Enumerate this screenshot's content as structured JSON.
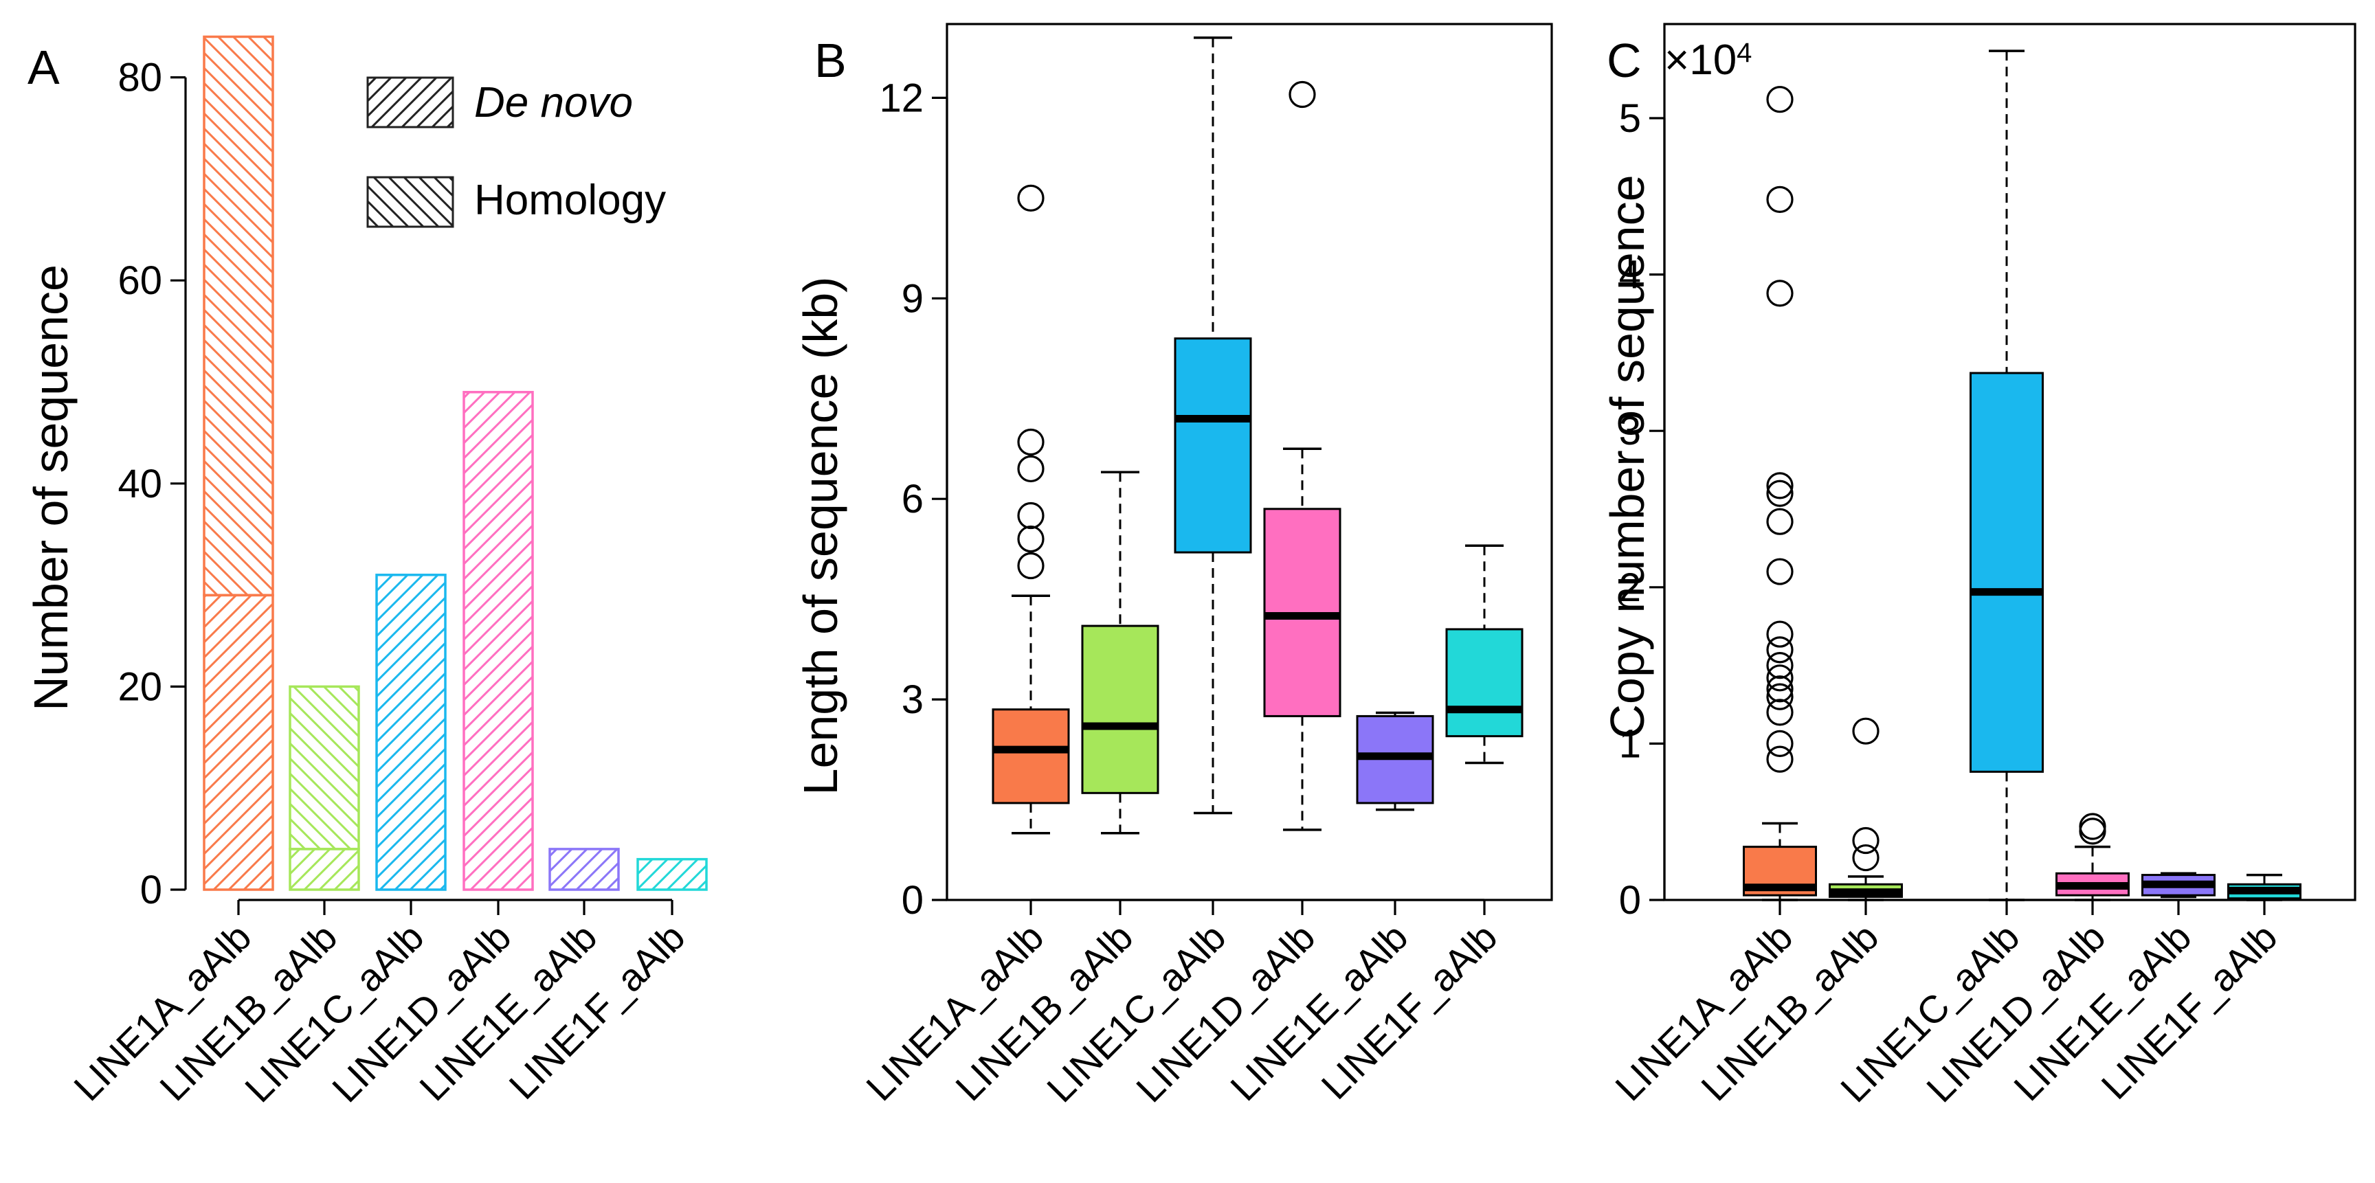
{
  "colors": {
    "LINE1A_aAlb": "#f97a4a",
    "LINE1B_aAlb": "#a6e75a",
    "LINE1C_aAlb": "#1ab8ee",
    "LINE1D_aAlb": "#ff6fc0",
    "LINE1E_aAlb": "#8b76f8",
    "LINE1F_aAlb": "#22d8d8",
    "outlier": "#000000"
  },
  "chart_data": [
    {
      "panel": "A",
      "type": "bar",
      "title": "",
      "xlabel": "",
      "ylabel": "Number of sequence",
      "ylim": [
        0,
        85
      ],
      "yticks": [
        0,
        20,
        40,
        60,
        80
      ],
      "categories": [
        "LINE1A_aAlb",
        "LINE1B_aAlb",
        "LINE1C_aAlb",
        "LINE1D_aAlb",
        "LINE1E_aAlb",
        "LINE1F_aAlb"
      ],
      "series": [
        {
          "name": "De novo",
          "pattern": "hatch-forward",
          "values": [
            29,
            4,
            31,
            49,
            4,
            3
          ]
        },
        {
          "name": "Homology",
          "pattern": "hatch-backward",
          "values": [
            55,
            16,
            0,
            0,
            0,
            0
          ]
        }
      ],
      "legend": {
        "position": "top-right",
        "entries": [
          {
            "label": "De novo",
            "italic": true
          },
          {
            "label": "Homology",
            "italic": false
          }
        ]
      }
    },
    {
      "panel": "B",
      "type": "box",
      "title": "",
      "xlabel": "",
      "ylabel": "Length of sequence (kb)",
      "ylim": [
        0,
        13
      ],
      "yticks": [
        0,
        3,
        6,
        9,
        12
      ],
      "categories": [
        "LINE1A_aAlb",
        "LINE1B_aAlb",
        "LINE1C_aAlb",
        "LINE1D_aAlb",
        "LINE1E_aAlb",
        "LINE1F_aAlb"
      ],
      "boxes": [
        {
          "whisker_low": 1.0,
          "q1": 1.45,
          "median": 2.25,
          "q3": 2.85,
          "whisker_high": 4.55,
          "outliers": [
            5.0,
            5.4,
            5.75,
            6.45,
            6.85,
            10.5
          ]
        },
        {
          "whisker_low": 1.0,
          "q1": 1.6,
          "median": 2.6,
          "q3": 4.1,
          "whisker_high": 6.4,
          "outliers": []
        },
        {
          "whisker_low": 1.3,
          "q1": 5.2,
          "median": 7.2,
          "q3": 8.4,
          "whisker_high": 12.9,
          "outliers": []
        },
        {
          "whisker_low": 1.05,
          "q1": 2.75,
          "median": 4.25,
          "q3": 5.85,
          "whisker_high": 6.75,
          "outliers": [
            12.05
          ]
        },
        {
          "whisker_low": 1.35,
          "q1": 1.45,
          "median": 2.15,
          "q3": 2.75,
          "whisker_high": 2.8,
          "outliers": []
        },
        {
          "whisker_low": 2.05,
          "q1": 2.45,
          "median": 2.85,
          "q3": 4.05,
          "whisker_high": 5.3,
          "outliers": []
        }
      ]
    },
    {
      "panel": "C",
      "type": "box",
      "title": "",
      "xlabel": "",
      "ylabel": "Copy number of sequence",
      "scale_label": "×10",
      "scale_exponent": "4",
      "ylim": [
        0,
        5.55
      ],
      "yticks": [
        0,
        1,
        2,
        3,
        4,
        5
      ],
      "categories": [
        "LINE1A_aAlb",
        "LINE1B_aAlb",
        "LINE1C_aAlb",
        "LINE1D_aAlb",
        "LINE1E_aAlb",
        "LINE1F_aAlb"
      ],
      "boxes": [
        {
          "whisker_low": 0.0,
          "q1": 0.03,
          "median": 0.08,
          "q3": 0.34,
          "whisker_high": 0.49,
          "outliers": [
            0.9,
            1.0,
            1.2,
            1.3,
            1.35,
            1.42,
            1.5,
            1.6,
            1.7,
            2.1,
            2.42,
            2.6,
            2.65,
            3.88,
            4.48,
            5.12
          ]
        },
        {
          "whisker_low": 0.0,
          "q1": 0.02,
          "median": 0.05,
          "q3": 0.1,
          "whisker_high": 0.15,
          "outliers": [
            0.27,
            0.38,
            1.08
          ]
        },
        {
          "whisker_low": 0.0,
          "q1": 0.82,
          "median": 1.97,
          "q3": 3.37,
          "whisker_high": 5.43,
          "outliers": []
        },
        {
          "whisker_low": 0.0,
          "q1": 0.03,
          "median": 0.09,
          "q3": 0.17,
          "whisker_high": 0.34,
          "outliers": [
            0.44,
            0.47
          ]
        },
        {
          "whisker_low": 0.02,
          "q1": 0.03,
          "median": 0.1,
          "q3": 0.16,
          "whisker_high": 0.17,
          "outliers": []
        },
        {
          "whisker_low": 0.0,
          "q1": 0.01,
          "median": 0.06,
          "q3": 0.1,
          "whisker_high": 0.16,
          "outliers": []
        }
      ]
    }
  ]
}
